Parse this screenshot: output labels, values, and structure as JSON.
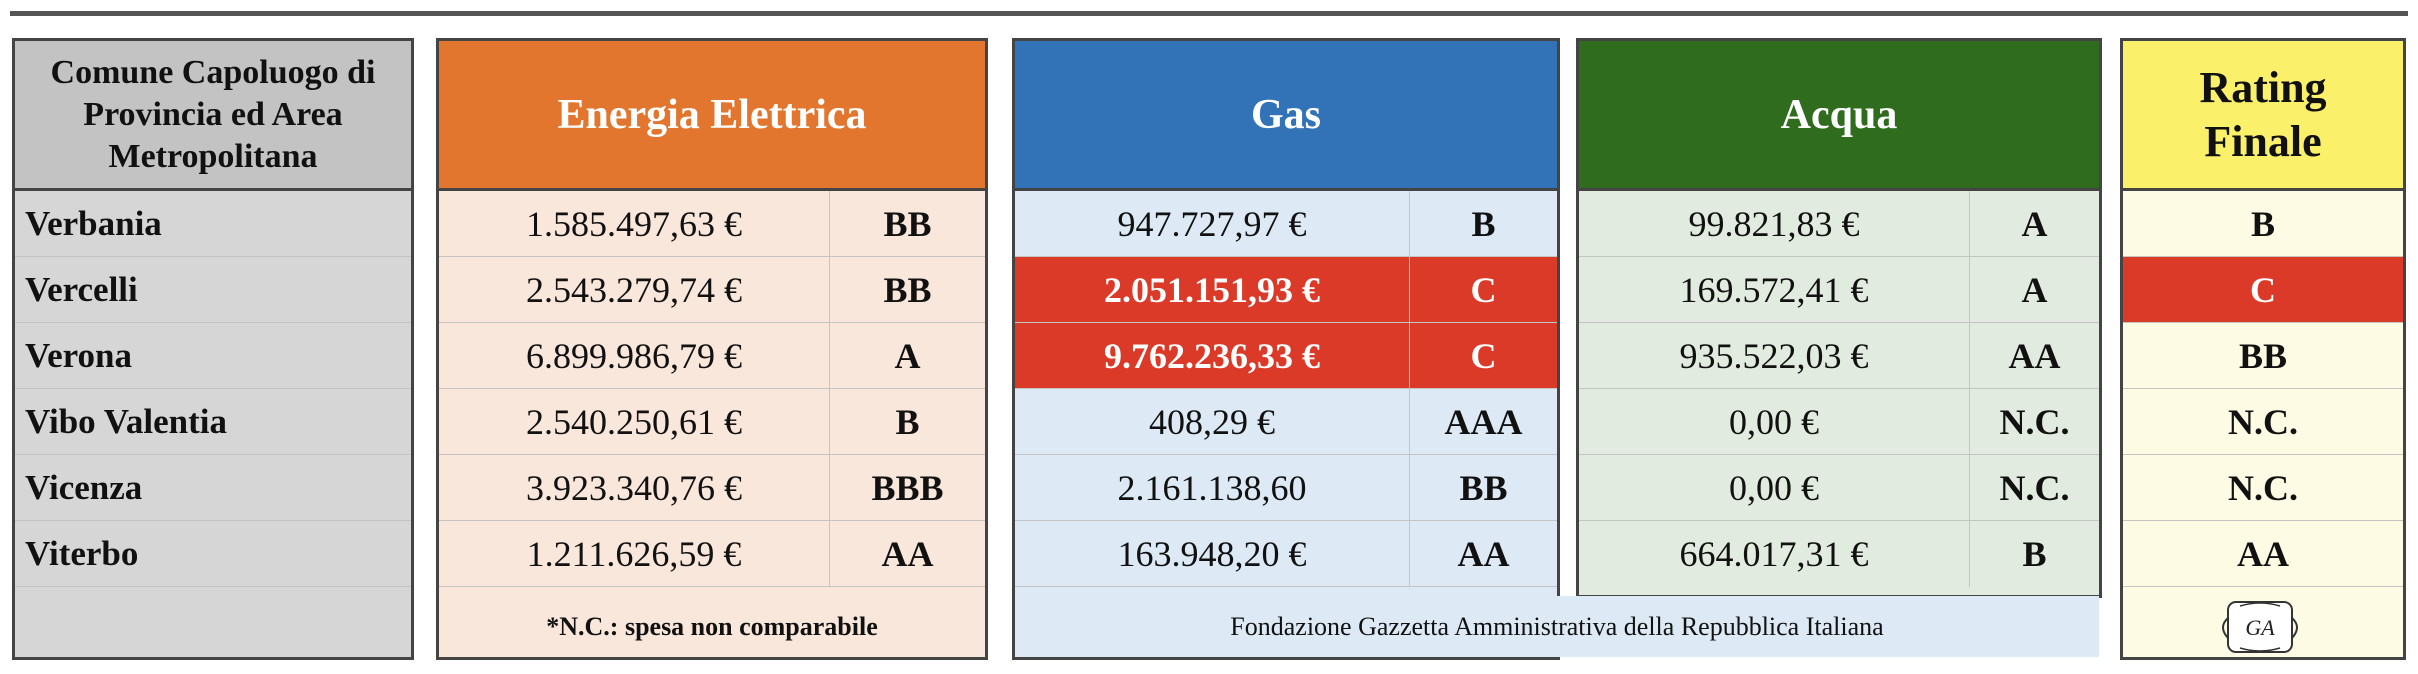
{
  "headers": {
    "city": "Comune Capoluogo di Provincia ed Area Metropolitana",
    "energia": "Energia Elettrica",
    "gas": "Gas",
    "acqua": "Acqua",
    "rating": "Rating Finale"
  },
  "rows": [
    {
      "city": "Verbania",
      "energia": "1.585.497,63 €",
      "energia_rating": "BB",
      "gas": "947.727,97 €",
      "gas_rating": "B",
      "acqua": "99.821,83 €",
      "acqua_rating": "A",
      "rating": "B"
    },
    {
      "city": "Vercelli",
      "energia": "2.543.279,74 €",
      "energia_rating": "BB",
      "gas": "2.051.151,93 €",
      "gas_rating": "C",
      "acqua": "169.572,41 €",
      "acqua_rating": "A",
      "rating": "C"
    },
    {
      "city": "Verona",
      "energia": "6.899.986,79 €",
      "energia_rating": "A",
      "gas": "9.762.236,33 €",
      "gas_rating": "C",
      "acqua": "935.522,03 €",
      "acqua_rating": "AA",
      "rating": "BB"
    },
    {
      "city": "Vibo Valentia",
      "energia": "2.540.250,61 €",
      "energia_rating": "B",
      "gas": "408,29 €",
      "gas_rating": "AAA",
      "acqua": "0,00 €",
      "acqua_rating": "N.C.",
      "rating": "N.C."
    },
    {
      "city": "Vicenza",
      "energia": "3.923.340,76 €",
      "energia_rating": "BBB",
      "gas": "2.161.138,60",
      "gas_rating": "BB",
      "acqua": "0,00 €",
      "acqua_rating": "N.C.",
      "rating": "N.C."
    },
    {
      "city": "Viterbo",
      "energia": "1.211.626,59 €",
      "energia_rating": "AA",
      "gas": "163.948,20 €",
      "gas_rating": "AA",
      "acqua": "664.017,31 €",
      "acqua_rating": "B",
      "rating": "AA"
    }
  ],
  "footer": {
    "note": "*N.C.: spesa non comparabile",
    "source": "Fondazione Gazzetta Amministrativa della Repubblica Italiana",
    "logo_text": "GA"
  },
  "colors": {
    "energia": "#e3762e",
    "gas": "#3273b7",
    "acqua": "#2f6c1e",
    "rating": "#fbf06a",
    "highlight_red": "#da3a27"
  },
  "icons": [
    "seal-logo-icon"
  ]
}
